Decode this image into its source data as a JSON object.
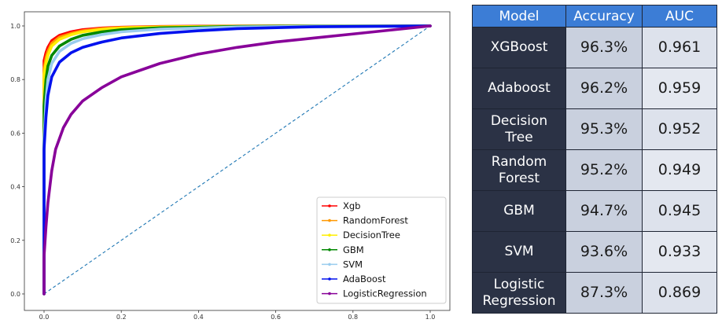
{
  "chart_data": {
    "type": "line",
    "title": "",
    "xlabel": "",
    "ylabel": "",
    "xlim": [
      0.0,
      1.0
    ],
    "ylim": [
      0.0,
      1.0
    ],
    "x_ticks": [
      "0.0",
      "0.2",
      "0.4",
      "0.6",
      "0.8",
      "1.0"
    ],
    "y_ticks": [
      "0.0",
      "0.2",
      "0.4",
      "0.6",
      "0.8",
      "1.0"
    ],
    "grid": false,
    "legend_position": "lower-right",
    "series": [
      {
        "name": "Xgb",
        "color": "#ff0000",
        "x": [
          0,
          0,
          0.005,
          0.01,
          0.02,
          0.04,
          0.07,
          0.1,
          0.15,
          0.2,
          0.3,
          0.5,
          0.7,
          1.0
        ],
        "y": [
          0,
          0.87,
          0.9,
          0.92,
          0.945,
          0.965,
          0.978,
          0.986,
          0.992,
          0.995,
          0.998,
          1.0,
          1.0,
          1.0
        ]
      },
      {
        "name": "RandomForest",
        "color": "#ff9900",
        "x": [
          0,
          0,
          0.005,
          0.01,
          0.02,
          0.04,
          0.07,
          0.1,
          0.15,
          0.2,
          0.3,
          0.5,
          0.7,
          1.0
        ],
        "y": [
          0,
          0.84,
          0.88,
          0.905,
          0.935,
          0.958,
          0.972,
          0.982,
          0.99,
          0.994,
          0.997,
          0.999,
          1.0,
          1.0
        ]
      },
      {
        "name": "DecisionTree",
        "color": "#ffee00",
        "x": [
          0,
          0,
          0.005,
          0.01,
          0.02,
          0.04,
          0.07,
          0.1,
          0.15,
          0.2,
          0.3,
          0.5,
          0.7,
          1.0
        ],
        "y": [
          0,
          0.82,
          0.86,
          0.89,
          0.925,
          0.95,
          0.967,
          0.978,
          0.987,
          0.992,
          0.996,
          0.999,
          1.0,
          1.0
        ]
      },
      {
        "name": "GBM",
        "color": "#008800",
        "x": [
          0,
          0,
          0.005,
          0.01,
          0.02,
          0.04,
          0.07,
          0.1,
          0.15,
          0.2,
          0.3,
          0.5,
          0.7,
          1.0
        ],
        "y": [
          0,
          0.7,
          0.8,
          0.85,
          0.89,
          0.925,
          0.95,
          0.965,
          0.978,
          0.986,
          0.993,
          0.998,
          1.0,
          1.0
        ]
      },
      {
        "name": "SVM",
        "color": "#99ccee",
        "x": [
          0,
          0,
          0.005,
          0.01,
          0.02,
          0.04,
          0.07,
          0.1,
          0.15,
          0.2,
          0.3,
          0.5,
          0.7,
          1.0
        ],
        "y": [
          0,
          0.58,
          0.72,
          0.8,
          0.86,
          0.905,
          0.935,
          0.952,
          0.968,
          0.978,
          0.988,
          0.996,
          0.999,
          1.0
        ]
      },
      {
        "name": "AdaBoost",
        "color": "#0011ee",
        "x": [
          0,
          0,
          0.005,
          0.01,
          0.02,
          0.04,
          0.07,
          0.1,
          0.15,
          0.2,
          0.3,
          0.4,
          0.5,
          0.7,
          1.0
        ],
        "y": [
          0,
          0.54,
          0.66,
          0.74,
          0.81,
          0.865,
          0.9,
          0.92,
          0.94,
          0.955,
          0.972,
          0.982,
          0.99,
          0.997,
          1.0
        ]
      },
      {
        "name": "LogisticRegression",
        "color": "#880099",
        "x": [
          0,
          0,
          0.005,
          0.01,
          0.02,
          0.03,
          0.05,
          0.07,
          0.1,
          0.15,
          0.2,
          0.25,
          0.3,
          0.4,
          0.5,
          0.6,
          0.7,
          0.8,
          0.9,
          1.0
        ],
        "y": [
          0,
          0.14,
          0.25,
          0.34,
          0.46,
          0.54,
          0.62,
          0.67,
          0.72,
          0.77,
          0.81,
          0.835,
          0.86,
          0.895,
          0.92,
          0.94,
          0.955,
          0.97,
          0.985,
          1.0
        ]
      }
    ],
    "reference_line": {
      "x": [
        0,
        1
      ],
      "y": [
        0,
        1
      ],
      "color": "#1f77b4",
      "style": "dashed"
    }
  },
  "table": {
    "headers": [
      "Model",
      "Accuracy",
      "AUC"
    ],
    "header_color": "#3c7dd6",
    "rows": [
      {
        "model": "XGBoost",
        "accuracy": "96.3%",
        "auc": "0.961"
      },
      {
        "model": "Adaboost",
        "accuracy": "96.2%",
        "auc": "0.959"
      },
      {
        "model": "Decision\nTree",
        "accuracy": "95.3%",
        "auc": "0.952"
      },
      {
        "model": "Random\nForest",
        "accuracy": "95.2%",
        "auc": "0.949"
      },
      {
        "model": "GBM",
        "accuracy": "94.7%",
        "auc": "0.945"
      },
      {
        "model": "SVM",
        "accuracy": "93.6%",
        "auc": "0.933"
      },
      {
        "model": "Logistic\nRegression",
        "accuracy": "87.3%",
        "auc": "0.869"
      }
    ]
  }
}
